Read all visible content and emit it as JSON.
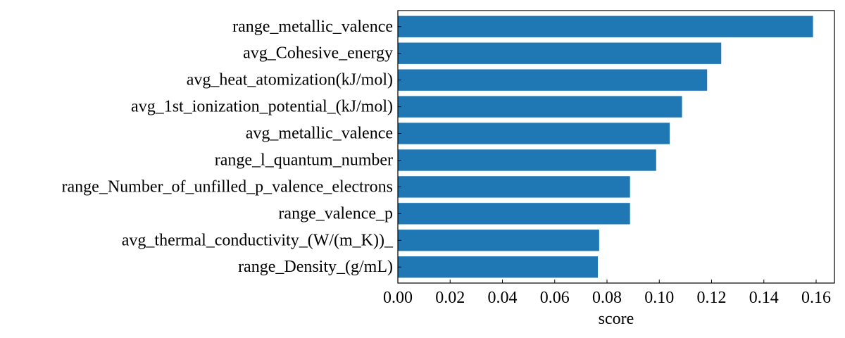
{
  "chart_data": {
    "type": "bar",
    "orientation": "horizontal",
    "categories": [
      "range_metallic_valence",
      "avg_Cohesive_energy",
      "avg_heat_atomization(kJ/mol)",
      "avg_1st_ionization_potential_(kJ/mol)",
      "avg_metallic_valence",
      "range_l_quantum_number",
      "range_Number_of_unfilled_p_valence_electrons",
      "range_valence_p",
      "avg_thermal_conductivity_(W/(m_K))_",
      "range_Density_(g/mL)"
    ],
    "values": [
      0.1588,
      0.1237,
      0.1183,
      0.1087,
      0.104,
      0.0988,
      0.0888,
      0.0888,
      0.077,
      0.0765
    ],
    "xlabel": "score",
    "xlim": [
      0.0,
      0.167
    ],
    "xticks": [
      0.0,
      0.02,
      0.04,
      0.06,
      0.08,
      0.1,
      0.12,
      0.14,
      0.16
    ],
    "xtick_labels": [
      "0.00",
      "0.02",
      "0.04",
      "0.06",
      "0.08",
      "0.10",
      "0.12",
      "0.14",
      "0.16"
    ],
    "bar_color": "#1f77b4",
    "grid": false
  }
}
